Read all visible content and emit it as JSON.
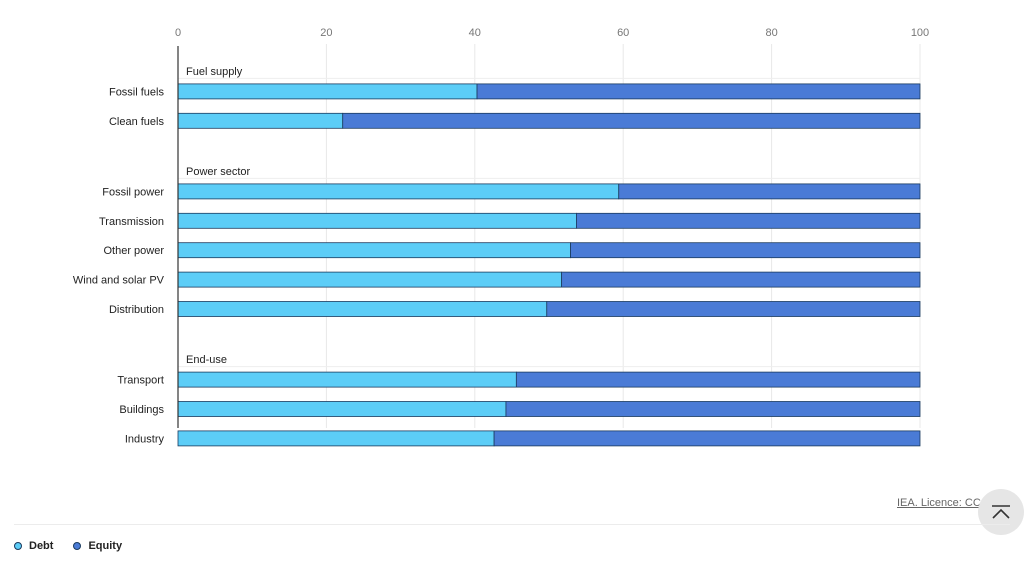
{
  "chart_data": {
    "type": "bar",
    "orientation": "horizontal",
    "stacked": true,
    "xlim": [
      0,
      100
    ],
    "x_ticks": [
      "0",
      "20",
      "40",
      "60",
      "80",
      "100"
    ],
    "grid": true,
    "legend_position": "bottom-left",
    "groups": [
      {
        "name": "Fuel supply",
        "categories": [
          "Fossil fuels",
          "Clean fuels"
        ]
      },
      {
        "name": "Power sector",
        "categories": [
          "Fossil power",
          "Transmission",
          "Other power",
          "Wind and solar PV",
          "Distribution"
        ]
      },
      {
        "name": "End-use",
        "categories": [
          "Transport",
          "Buildings",
          "Industry"
        ]
      }
    ],
    "series": [
      {
        "name": "Debt",
        "color": "#5ccdf7",
        "values": [
          40.3,
          22.2,
          59.4,
          53.7,
          52.9,
          51.7,
          49.7,
          45.6,
          44.2,
          42.6
        ]
      },
      {
        "name": "Equity",
        "color": "#4a7bd6",
        "values": [
          59.7,
          77.8,
          40.6,
          46.3,
          47.1,
          48.3,
          50.3,
          54.4,
          55.8,
          57.4
        ]
      }
    ]
  },
  "footer": {
    "credit": "IEA. Licence: CC"
  },
  "colors": {
    "debt": "#5ccdf7",
    "equity": "#4a7bd6",
    "bar_outline": "#1a3a5e",
    "gridline": "#e8e8e8",
    "axis": "#333333"
  }
}
